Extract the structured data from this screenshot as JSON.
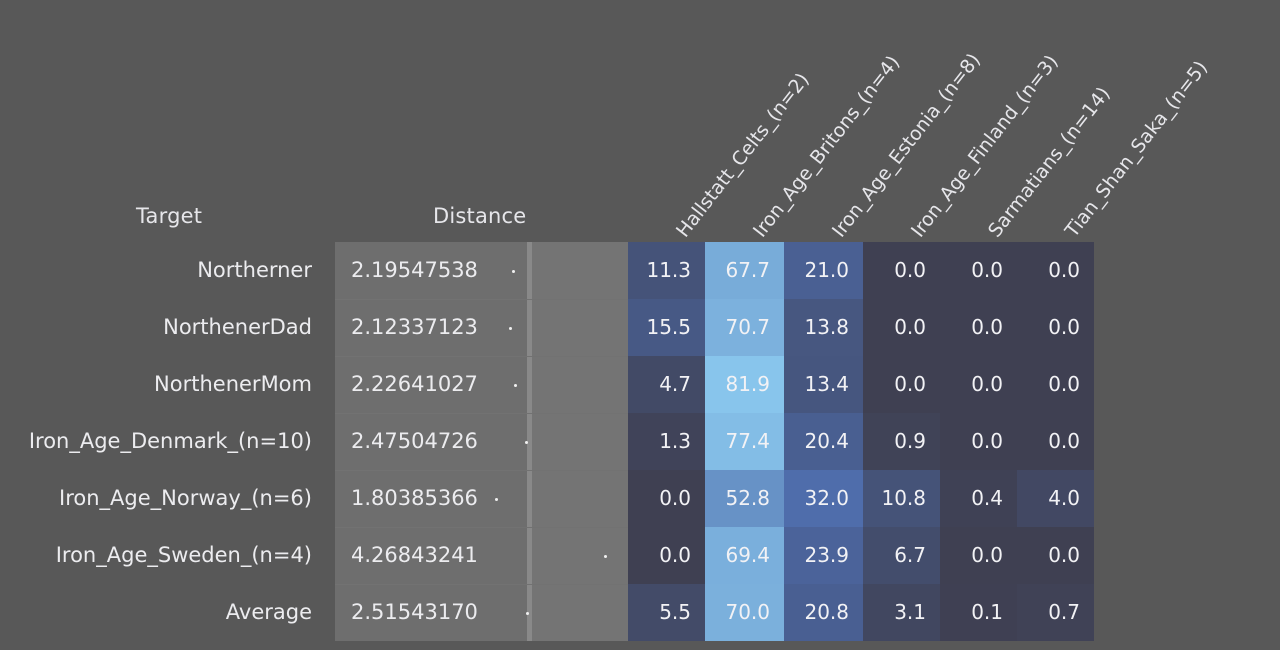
{
  "header": {
    "target_label": "Target",
    "distance_label": "Distance"
  },
  "chart_data": {
    "type": "heatmap",
    "columns": [
      "Hallstatt_Celts_(n=2)",
      "Iron_Age_Britons_(n=4)",
      "Iron_Age_Estonia_(n=8)",
      "Iron_Age_Finland_(n=3)",
      "Sarmatians_(n=14)",
      "Tian_Shan_Saka_(n=5)"
    ],
    "rows": [
      {
        "target": "Northerner",
        "distance": "2.19547538",
        "distance_value": 2.19547538,
        "values": [
          "11.3",
          "67.7",
          "21.0",
          "0.0",
          "0.0",
          "0.0"
        ]
      },
      {
        "target": "NorthenerDad",
        "distance": "2.12337123",
        "distance_value": 2.12337123,
        "values": [
          "15.5",
          "70.7",
          "13.8",
          "0.0",
          "0.0",
          "0.0"
        ]
      },
      {
        "target": "NorthenerMom",
        "distance": "2.22641027",
        "distance_value": 2.22641027,
        "values": [
          "4.7",
          "81.9",
          "13.4",
          "0.0",
          "0.0",
          "0.0"
        ]
      },
      {
        "target": "Iron_Age_Denmark_(n=10)",
        "distance": "2.47504726",
        "distance_value": 2.47504726,
        "values": [
          "1.3",
          "77.4",
          "20.4",
          "0.9",
          "0.0",
          "0.0"
        ]
      },
      {
        "target": "Iron_Age_Norway_(n=6)",
        "distance": "1.80385366",
        "distance_value": 1.80385366,
        "values": [
          "0.0",
          "52.8",
          "32.0",
          "10.8",
          "0.4",
          "4.0"
        ]
      },
      {
        "target": "Iron_Age_Sweden_(n=4)",
        "distance": "4.26843241",
        "distance_value": 4.26843241,
        "values": [
          "0.0",
          "69.4",
          "23.9",
          "6.7",
          "0.0",
          "0.0"
        ]
      },
      {
        "target": "Average",
        "distance": "2.51543170",
        "distance_value": 2.5154317,
        "values": [
          "5.5",
          "70.0",
          "20.8",
          "3.1",
          "0.1",
          "0.7"
        ]
      }
    ],
    "color_scale": {
      "low": "#3f4052",
      "mid": "#4d6aa8",
      "high": "#8ccaf0"
    },
    "background": "#585858"
  }
}
